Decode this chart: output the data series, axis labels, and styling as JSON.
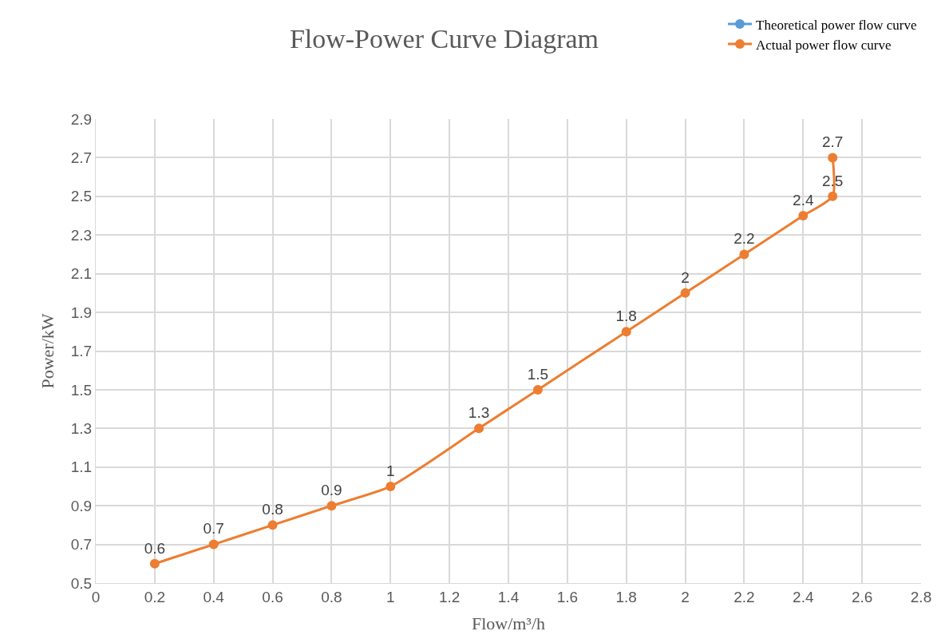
{
  "chart_data": {
    "type": "line",
    "title": "Flow-Power Curve Diagram",
    "xlabel": "Flow/m³/h",
    "ylabel": "Power/kW",
    "x": [
      0.2,
      0.4,
      0.6,
      0.8,
      1,
      1.3,
      1.5,
      1.8,
      2,
      2.2,
      2.4,
      2.5,
      2.5
    ],
    "series": [
      {
        "name": "Theoretical power flow curve",
        "color": "#5b9bd5",
        "values": [
          null,
          null,
          null,
          null,
          null,
          null,
          null,
          null,
          null,
          null,
          null,
          null,
          null
        ]
      },
      {
        "name": "Actual power flow curve",
        "color": "#ed7d31",
        "values": [
          0.6,
          0.7,
          0.8,
          0.9,
          1,
          1.3,
          1.5,
          1.8,
          2,
          2.2,
          2.4,
          2.5,
          2.7
        ],
        "data_labels": true
      }
    ],
    "xlim": [
      0,
      2.8
    ],
    "xticks": [
      0,
      0.2,
      0.4,
      0.6,
      0.8,
      1,
      1.2,
      1.4,
      1.6,
      1.8,
      2,
      2.2,
      2.4,
      2.6,
      2.8
    ],
    "ylim": [
      0.5,
      2.9
    ],
    "yticks": [
      0.5,
      0.7,
      0.9,
      1.1,
      1.3,
      1.5,
      1.7,
      1.9,
      2.1,
      2.3,
      2.5,
      2.7,
      2.9
    ],
    "grid": true,
    "legend": "top right",
    "marker": "circle",
    "line_style": "solid"
  }
}
